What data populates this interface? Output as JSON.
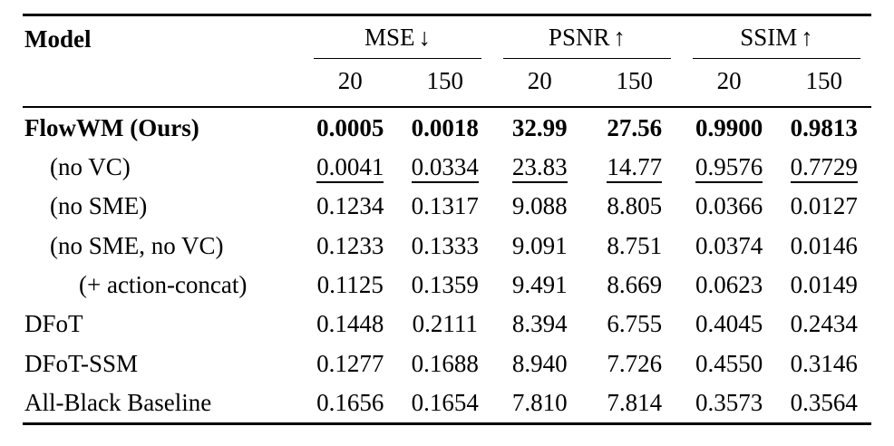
{
  "table": {
    "model_header": "Model",
    "groups": [
      {
        "label": "MSE",
        "arrow": "↓",
        "sub": [
          "20",
          "150"
        ]
      },
      {
        "label": "PSNR",
        "arrow": "↑",
        "sub": [
          "20",
          "150"
        ]
      },
      {
        "label": "SSIM",
        "arrow": "↑",
        "sub": [
          "20",
          "150"
        ]
      }
    ],
    "rows": [
      {
        "label": "FlowWM (Ours)",
        "style": "bold",
        "indent": 0,
        "values": [
          "0.0005",
          "0.0018",
          "32.99",
          "27.56",
          "0.9900",
          "0.9813"
        ]
      },
      {
        "label": "(no VC)",
        "style": "underline",
        "indent": 1,
        "values": [
          "0.0041",
          "0.0334",
          "23.83",
          "14.77",
          "0.9576",
          "0.7729"
        ]
      },
      {
        "label": "(no SME)",
        "style": "normal",
        "indent": 1,
        "values": [
          "0.1234",
          "0.1317",
          "9.088",
          "8.805",
          "0.0366",
          "0.0127"
        ]
      },
      {
        "label": "(no SME, no VC)",
        "style": "normal",
        "indent": 1,
        "values": [
          "0.1233",
          "0.1333",
          "9.091",
          "8.751",
          "0.0374",
          "0.0146"
        ]
      },
      {
        "label": "(+ action-concat)",
        "style": "normal",
        "indent": 2,
        "values": [
          "0.1125",
          "0.1359",
          "9.491",
          "8.669",
          "0.0623",
          "0.0149"
        ]
      },
      {
        "label": "DFoT",
        "style": "normal",
        "indent": 0,
        "values": [
          "0.1448",
          "0.2111",
          "8.394",
          "6.755",
          "0.4045",
          "0.2434"
        ]
      },
      {
        "label": "DFoT-SSM",
        "style": "normal",
        "indent": 0,
        "values": [
          "0.1277",
          "0.1688",
          "8.940",
          "7.726",
          "0.4550",
          "0.3146"
        ]
      },
      {
        "label": "All-Black Baseline",
        "style": "normal",
        "indent": 0,
        "values": [
          "0.1656",
          "0.1654",
          "7.810",
          "7.814",
          "0.3573",
          "0.3564"
        ]
      }
    ]
  },
  "colors": {
    "text": "#000000",
    "background": "#ffffff",
    "rule": "#000000"
  }
}
